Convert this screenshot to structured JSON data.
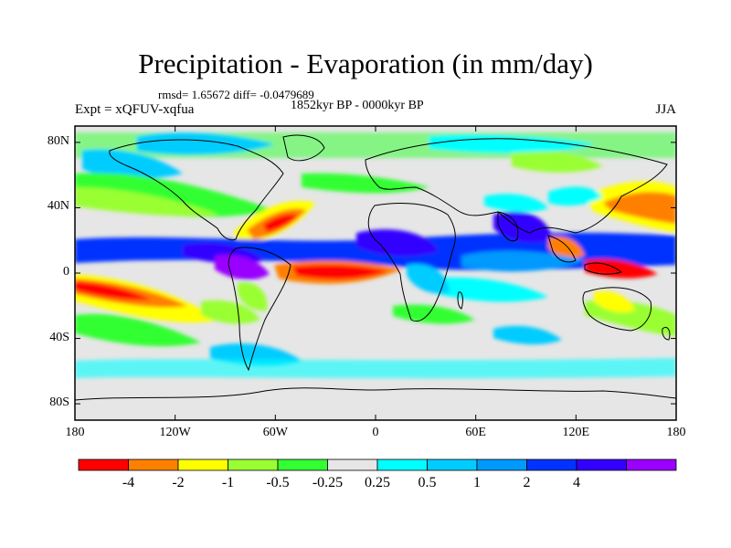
{
  "title": "Precipitation - Evaporation (in mm/day)",
  "stats": "rmsd= 1.65672 diff= -0.0479689",
  "period": "1852kyr BP - 0000kyr BP",
  "experiment": "Expt = xQFUV-xqfua",
  "season": "JJA",
  "map": {
    "projection": "cylindrical equidistant",
    "lon_range": [
      -180,
      180
    ],
    "lat_range": [
      -90,
      90
    ],
    "fill_default": "#e6e6e6",
    "y_ticks": [
      {
        "value": 80,
        "label": "80N"
      },
      {
        "value": 40,
        "label": "40N"
      },
      {
        "value": 0,
        "label": "0"
      },
      {
        "value": -40,
        "label": "40S"
      },
      {
        "value": -80,
        "label": "80S"
      }
    ],
    "x_ticks": [
      {
        "value": -180,
        "label": "180"
      },
      {
        "value": -120,
        "label": "120W"
      },
      {
        "value": -60,
        "label": "60W"
      },
      {
        "value": 0,
        "label": "0"
      },
      {
        "value": 60,
        "label": "60E"
      },
      {
        "value": 120,
        "label": "120E"
      },
      {
        "value": 180,
        "label": "180"
      }
    ]
  },
  "colorbar": {
    "colors": [
      "#ff0000",
      "#ff8000",
      "#ffff00",
      "#99ff33",
      "#33ff33",
      "#e6e6e6",
      "#00ffff",
      "#00ccff",
      "#0099ff",
      "#0033ff",
      "#3300ff",
      "#9900ff"
    ],
    "labels": [
      "-4",
      "-2",
      "-1",
      "-0.5",
      "-0.25",
      "0.25",
      "0.5",
      "1",
      "2",
      "4"
    ]
  }
}
